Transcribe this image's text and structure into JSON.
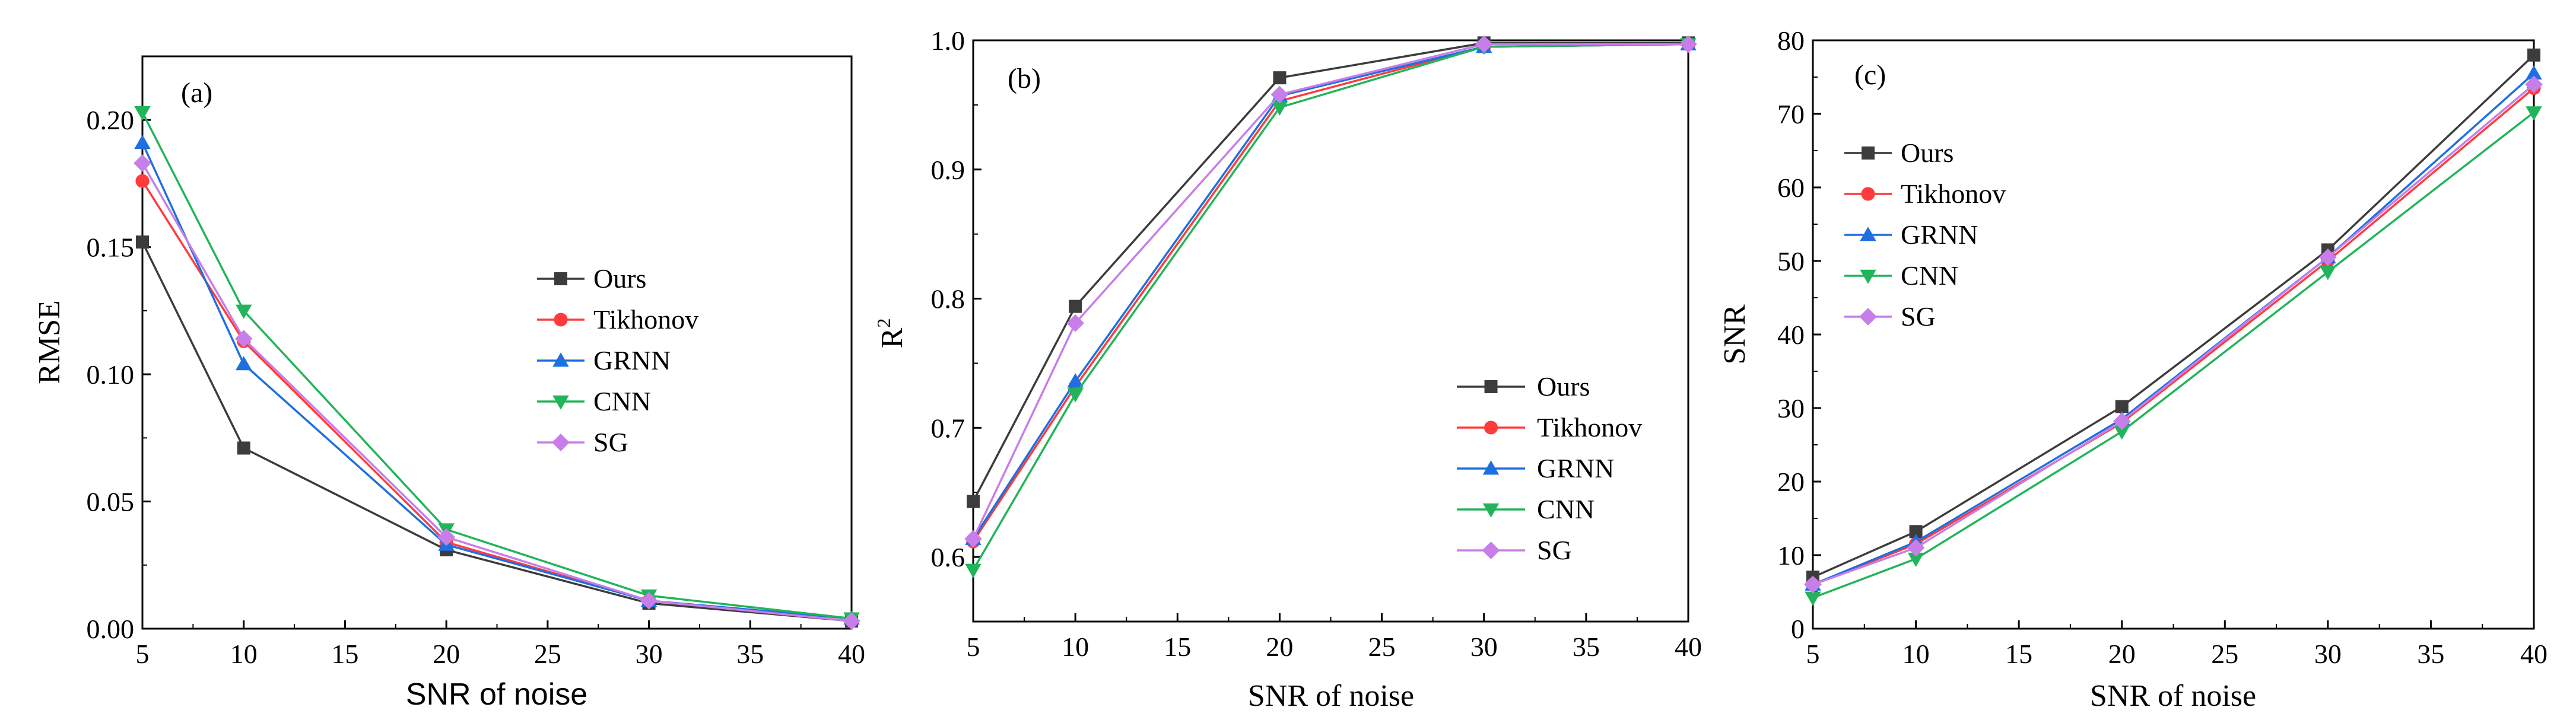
{
  "series_styles": [
    {
      "name": "Ours",
      "color": "#3c3c3c",
      "marker": "square"
    },
    {
      "name": "Tikhonov",
      "color": "#ff3b3b",
      "marker": "circle"
    },
    {
      "name": "GRNN",
      "color": "#1e6fe0",
      "marker": "triangle-up"
    },
    {
      "name": "CNN",
      "color": "#22b45a",
      "marker": "triangle-down"
    },
    {
      "name": "SG",
      "color": "#c77ee8",
      "marker": "diamond"
    }
  ],
  "chart_data": [
    {
      "type": "line",
      "panel_label": "(a)",
      "xlabel": "SNR of noise",
      "ylabel": "RMSE",
      "x": [
        5,
        10,
        20,
        30,
        40
      ],
      "xlim": [
        5,
        40
      ],
      "ylim": [
        0,
        0.225
      ],
      "xticks": [
        "5",
        "10",
        "15",
        "20",
        "25",
        "30",
        "35",
        "40"
      ],
      "yticks": [
        "0.00",
        "0.05",
        "0.10",
        "0.15",
        "0.20"
      ],
      "legend_position": "center-right",
      "series": [
        {
          "name": "Ours",
          "values": [
            0.152,
            0.071,
            0.031,
            0.01,
            0.003
          ]
        },
        {
          "name": "Tikhonov",
          "values": [
            0.176,
            0.113,
            0.034,
            0.011,
            0.003
          ]
        },
        {
          "name": "GRNN",
          "values": [
            0.191,
            0.104,
            0.033,
            0.011,
            0.004
          ]
        },
        {
          "name": "CNN",
          "values": [
            0.203,
            0.125,
            0.039,
            0.013,
            0.004
          ]
        },
        {
          "name": "SG",
          "values": [
            0.183,
            0.114,
            0.036,
            0.011,
            0.003
          ]
        }
      ]
    },
    {
      "type": "line",
      "panel_label": "(b)",
      "xlabel": "SNR of noise",
      "ylabel": "R",
      "ylabel_superscript": "2",
      "x": [
        5,
        10,
        20,
        30,
        40
      ],
      "xlim": [
        5,
        40
      ],
      "ylim": [
        0.55,
        1.0
      ],
      "xticks": [
        "5",
        "10",
        "15",
        "20",
        "25",
        "30",
        "35",
        "40"
      ],
      "yticks": [
        "0.6",
        "0.7",
        "0.8",
        "0.9",
        "1.0"
      ],
      "legend_position": "bottom-right",
      "series": [
        {
          "name": "Ours",
          "values": [
            0.643,
            0.794,
            0.971,
            0.998,
            0.998
          ]
        },
        {
          "name": "Tikhonov",
          "values": [
            0.612,
            0.732,
            0.953,
            0.995,
            0.997
          ]
        },
        {
          "name": "GRNN",
          "values": [
            0.614,
            0.736,
            0.957,
            0.995,
            0.997
          ]
        },
        {
          "name": "CNN",
          "values": [
            0.59,
            0.726,
            0.948,
            0.995,
            0.997
          ]
        },
        {
          "name": "SG",
          "values": [
            0.614,
            0.781,
            0.958,
            0.997,
            0.997
          ]
        }
      ]
    },
    {
      "type": "line",
      "panel_label": "(c)",
      "xlabel": "SNR of noise",
      "ylabel": "SNR",
      "x": [
        5,
        10,
        20,
        30,
        40
      ],
      "xlim": [
        5,
        40
      ],
      "ylim": [
        0,
        80
      ],
      "xticks": [
        "5",
        "10",
        "15",
        "20",
        "25",
        "30",
        "35",
        "40"
      ],
      "yticks": [
        "0",
        "10",
        "20",
        "30",
        "40",
        "50",
        "60",
        "70",
        "80"
      ],
      "legend_position": "top-left",
      "series": [
        {
          "name": "Ours",
          "values": [
            7.0,
            13.2,
            30.2,
            51.5,
            78.0
          ]
        },
        {
          "name": "Tikhonov",
          "values": [
            6.0,
            11.5,
            28.0,
            50.0,
            73.5
          ]
        },
        {
          "name": "GRNN",
          "values": [
            6.0,
            11.8,
            28.5,
            50.5,
            75.5
          ]
        },
        {
          "name": "CNN",
          "values": [
            4.2,
            9.5,
            26.8,
            48.5,
            70.2
          ]
        },
        {
          "name": "SG",
          "values": [
            6.0,
            11.0,
            28.2,
            50.5,
            74.0
          ]
        }
      ]
    }
  ]
}
